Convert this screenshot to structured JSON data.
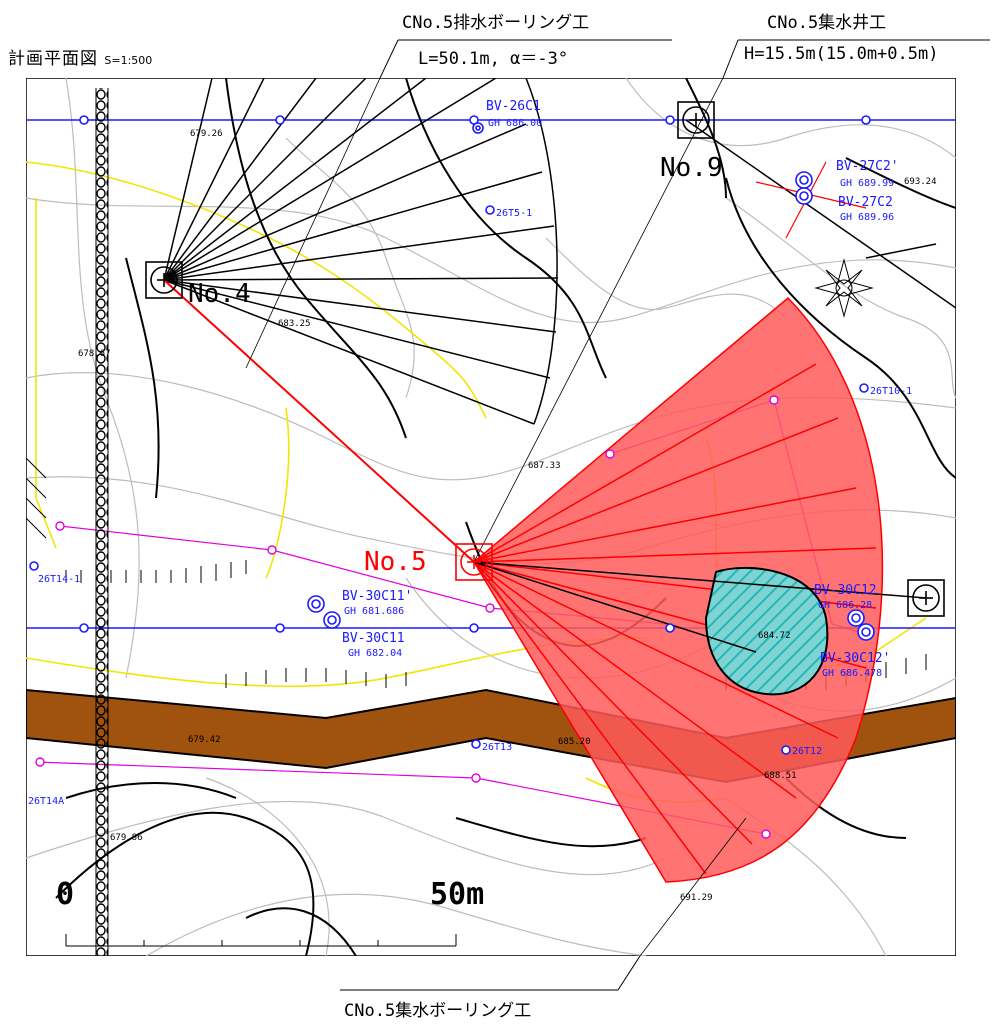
{
  "header": {
    "plan_title": "計画平面図",
    "scale": "S=1:500"
  },
  "callouts": {
    "drain_boring_title": "CNo.5排水ボーリング工",
    "drain_boring_spec": "L=50.1m, α＝-3°",
    "well_title": "CNo.5集水井工",
    "well_spec": "H=15.5m(15.0m+0.5m)",
    "collect_boring_title": "CNo.5集水ボーリング工"
  },
  "wells": {
    "no4": "No.4",
    "no5": "No.5",
    "no9": "No.9"
  },
  "boreholes": {
    "bv26c1": "BV-26C1",
    "bv26c1_gh": "GH 686.00",
    "bv27c2p": "BV-27C2'",
    "bv27c2p_gh": "GH 689.99",
    "bv27c2": "BV-27C2",
    "bv27c2_gh": "GH 689.96",
    "bv30c11p": "BV-30C11'",
    "bv30c11p_gh": "GH 681.686",
    "bv30c11": "BV-30C11",
    "bv30c11_gh": "GH 682.04",
    "bv30c12": "BV-30C12",
    "bv30c12_gh": "GH 686.28",
    "bv30c12p": "BV-30C12'",
    "bv30c12p_gh": "GH 686.478",
    "t26t5": "26T5-1",
    "t26t10": "26T10-1",
    "t26t14": "26T14-1",
    "t26t14a": "26T14A",
    "t26t13": "26T13",
    "t26t12": "26T12"
  },
  "spot_heights": {
    "h1": "679.26",
    "h2": "683.25",
    "h3": "678.67",
    "h4": "687.33",
    "h5": "693.24",
    "h6": "684.72",
    "h7": "679.42",
    "h8": "685.20",
    "h9": "688.51",
    "h10": "679.86",
    "h11": "691.29"
  },
  "scale_bar": {
    "start": "0",
    "end": "50m"
  },
  "colors": {
    "survey_line": "#1a1aff",
    "fan_fill": "#ff5a5a",
    "fan_stroke": "#ff0000",
    "road_fill": "#a0520f",
    "label_blue": "#1a1aff",
    "label_red": "#ff0000",
    "contour": "#bdbdbd",
    "yellow_line": "#f2e600",
    "magenta_line": "#e000e0",
    "teal_hatch": "#22b8b8"
  }
}
